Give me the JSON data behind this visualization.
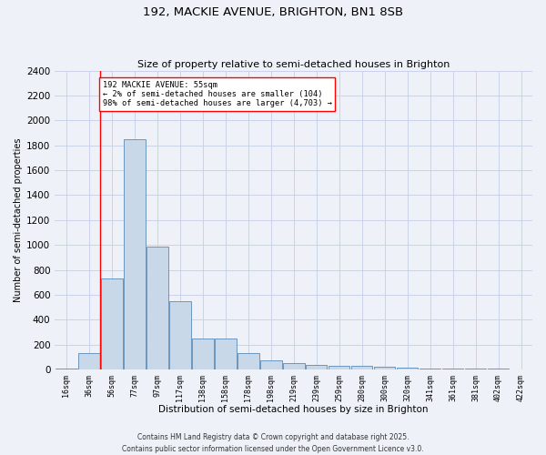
{
  "title_line1": "192, MACKIE AVENUE, BRIGHTON, BN1 8SB",
  "title_line2": "Size of property relative to semi-detached houses in Brighton",
  "xlabel": "Distribution of semi-detached houses by size in Brighton",
  "ylabel": "Number of semi-detached properties",
  "categories": [
    "16sqm",
    "36sqm",
    "56sqm",
    "77sqm",
    "97sqm",
    "117sqm",
    "138sqm",
    "158sqm",
    "178sqm",
    "198sqm",
    "219sqm",
    "239sqm",
    "259sqm",
    "280sqm",
    "300sqm",
    "320sqm",
    "341sqm",
    "361sqm",
    "381sqm",
    "402sqm",
    "422sqm"
  ],
  "values": [
    10,
    130,
    730,
    1850,
    990,
    550,
    245,
    245,
    130,
    75,
    50,
    35,
    30,
    30,
    20,
    15,
    10,
    5,
    5,
    5,
    3
  ],
  "bar_color": "#c8d8e8",
  "bar_edge_color": "#5a8ab5",
  "vline_color": "red",
  "vline_x_index": 2,
  "annotation_text_line1": "192 MACKIE AVENUE: 55sqm",
  "annotation_text_line2": "← 2% of semi-detached houses are smaller (104)",
  "annotation_text_line3": "98% of semi-detached houses are larger (4,703) →",
  "annotation_box_edge": "red",
  "grid_color": "#c8d4e8",
  "background_color": "#eef2f8",
  "footer_line1": "Contains HM Land Registry data © Crown copyright and database right 2025.",
  "footer_line2": "Contains public sector information licensed under the Open Government Licence v3.0.",
  "ylim": [
    0,
    2400
  ],
  "yticks": [
    0,
    200,
    400,
    600,
    800,
    1000,
    1200,
    1400,
    1600,
    1800,
    2000,
    2200,
    2400
  ]
}
